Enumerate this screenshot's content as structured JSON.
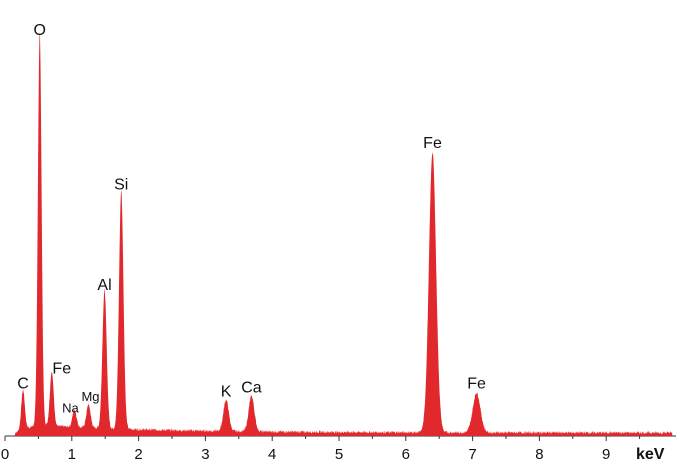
{
  "chart_data": {
    "type": "area",
    "title": "",
    "xlabel": "keV",
    "ylabel": "",
    "xlim": [
      0,
      10
    ],
    "ylim": [
      0,
      100
    ],
    "grid": false,
    "fill_color": "#e0282d",
    "x_ticks": [
      0,
      1,
      2,
      3,
      4,
      5,
      6,
      7,
      8,
      9
    ],
    "x_tick_labels": [
      "0",
      "1",
      "2",
      "3",
      "4",
      "5",
      "6",
      "7",
      "8",
      "9"
    ],
    "baseline": 0.8,
    "peaks": [
      {
        "element": "C",
        "energy": 0.27,
        "height": 9.5
      },
      {
        "element": "O",
        "energy": 0.52,
        "height": 94
      },
      {
        "element": "Fe",
        "energy": 0.7,
        "height": 13
      },
      {
        "element": "Na",
        "energy": 1.04,
        "height": 4.2
      },
      {
        "element": "Mg",
        "energy": 1.25,
        "height": 5.5
      },
      {
        "element": "Al",
        "energy": 1.49,
        "height": 33
      },
      {
        "element": "Si",
        "energy": 1.74,
        "height": 57
      },
      {
        "element": "K",
        "energy": 3.31,
        "height": 7.5
      },
      {
        "element": "Ca",
        "energy": 3.69,
        "height": 8.5
      },
      {
        "element": "Fe",
        "energy": 6.4,
        "height": 67
      },
      {
        "element": "Fe",
        "energy": 7.06,
        "height": 9.5
      }
    ]
  }
}
